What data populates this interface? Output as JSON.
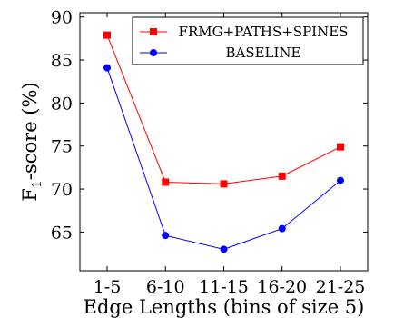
{
  "chart_data": {
    "type": "line",
    "title": "",
    "xlabel": "Edge Lengths (bins of size 5)",
    "ylabel": "F1-score (%)",
    "ylabel_main": "F",
    "ylabel_sub": "1",
    "ylabel_rest": "-score (%)",
    "categories": [
      "1-5",
      "6-10",
      "11-15",
      "16-20",
      "21-25"
    ],
    "ylim": [
      60.5,
      90.5
    ],
    "yticks": [
      65,
      70,
      75,
      80,
      85,
      90
    ],
    "grid": false,
    "legend_position": "top-right",
    "series": [
      {
        "name": "FRMG+PATHS+SPINES",
        "color": "#ff0000",
        "marker": "square",
        "values": [
          87.9,
          70.8,
          70.6,
          71.5,
          74.9
        ]
      },
      {
        "name": "BASELINE",
        "color": "#0000ff",
        "marker": "circle",
        "values": [
          84.1,
          64.6,
          63.0,
          65.4,
          71.0
        ]
      }
    ]
  }
}
